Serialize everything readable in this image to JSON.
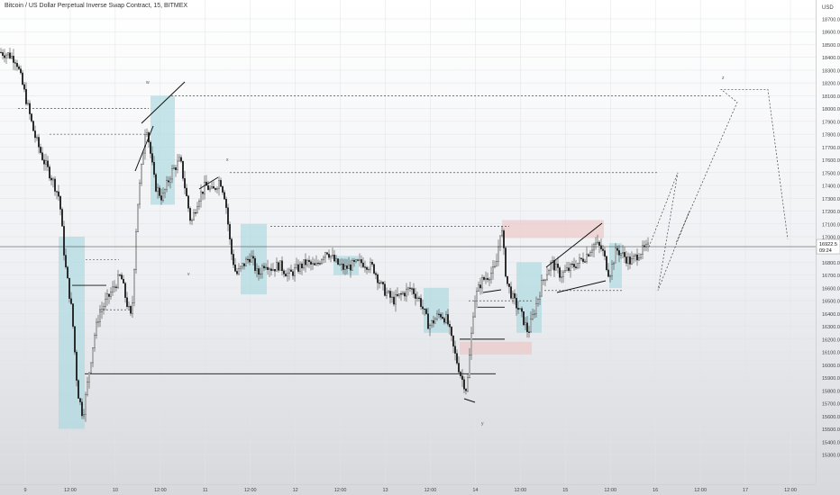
{
  "title": "Bitcoin / US Dollar Perpetual Inverse Swap Contract, 15, BITMEX",
  "currency": "USD",
  "colors": {
    "up": "#ffffff",
    "down": "#222222",
    "box": "#a9d8e0",
    "supply": "#ecc6c6",
    "grid": "#e1e3e6"
  },
  "chart_data": {
    "type": "candlestick",
    "ylim": [
      15250,
      18800
    ],
    "y_ticks": [
      "15300.0",
      "15400.0",
      "15500.0",
      "15600.0",
      "15700.0",
      "15800.0",
      "15900.0",
      "16000.0",
      "16100.0",
      "16200.0",
      "16300.0",
      "16400.0",
      "16500.0",
      "16600.0",
      "16700.0",
      "16800.0",
      "16900.0",
      "17000.0",
      "17100.0",
      "17200.0",
      "17300.0",
      "17400.0",
      "17500.0",
      "17600.0",
      "17700.0",
      "17800.0",
      "17900.0",
      "18000.0",
      "18100.0",
      "18200.0",
      "18300.0",
      "18400.0",
      "18500.0",
      "18600.0",
      "18700.0"
    ],
    "x_ticks": [
      "9",
      "12:00",
      "10",
      "12:00",
      "11",
      "12:00",
      "12",
      "12:00",
      "13",
      "12:00",
      "14",
      "12:00",
      "15",
      "12:00",
      "16",
      "12:00",
      "17",
      "12:00"
    ],
    "last_price": "16922.5",
    "countdown": "09:24",
    "price_line": 16922.5,
    "wave_labels": [
      "w",
      "x",
      "y",
      "z",
      "v"
    ],
    "path": [
      [
        0,
        18440
      ],
      [
        10,
        18420
      ],
      [
        18,
        18380
      ],
      [
        28,
        18100
      ],
      [
        38,
        17800
      ],
      [
        48,
        17600
      ],
      [
        58,
        17450
      ],
      [
        66,
        17300
      ],
      [
        72,
        16800
      ],
      [
        80,
        16400
      ],
      [
        86,
        15800
      ],
      [
        92,
        15600
      ],
      [
        98,
        15900
      ],
      [
        104,
        16200
      ],
      [
        110,
        16400
      ],
      [
        118,
        16500
      ],
      [
        126,
        16600
      ],
      [
        134,
        16700
      ],
      [
        140,
        16500
      ],
      [
        146,
        16350
      ],
      [
        152,
        17200
      ],
      [
        158,
        17600
      ],
      [
        162,
        17900
      ],
      [
        166,
        17700
      ],
      [
        172,
        17400
      ],
      [
        180,
        17300
      ],
      [
        190,
        17500
      ],
      [
        200,
        17600
      ],
      [
        206,
        17350
      ],
      [
        212,
        17100
      ],
      [
        220,
        17300
      ],
      [
        228,
        17400
      ],
      [
        236,
        17350
      ],
      [
        244,
        17450
      ],
      [
        250,
        17300
      ],
      [
        256,
        16900
      ],
      [
        262,
        16700
      ],
      [
        270,
        16780
      ],
      [
        278,
        16850
      ],
      [
        286,
        16700
      ],
      [
        294,
        16800
      ],
      [
        302,
        16750
      ],
      [
        310,
        16780
      ],
      [
        320,
        16700
      ],
      [
        330,
        16750
      ],
      [
        340,
        16800
      ],
      [
        350,
        16760
      ],
      [
        362,
        16900
      ],
      [
        372,
        16800
      ],
      [
        382,
        16750
      ],
      [
        392,
        16780
      ],
      [
        402,
        16800
      ],
      [
        414,
        16760
      ],
      [
        424,
        16600
      ],
      [
        436,
        16500
      ],
      [
        446,
        16550
      ],
      [
        456,
        16600
      ],
      [
        466,
        16500
      ],
      [
        476,
        16300
      ],
      [
        488,
        16400
      ],
      [
        496,
        16350
      ],
      [
        504,
        16100
      ],
      [
        512,
        15900
      ],
      [
        518,
        15800
      ],
      [
        526,
        16500
      ],
      [
        534,
        16650
      ],
      [
        542,
        16700
      ],
      [
        550,
        16750
      ],
      [
        556,
        17100
      ],
      [
        562,
        16650
      ],
      [
        570,
        16500
      ],
      [
        578,
        16400
      ],
      [
        586,
        16250
      ],
      [
        594,
        16450
      ],
      [
        602,
        16650
      ],
      [
        612,
        16800
      ],
      [
        622,
        16700
      ],
      [
        632,
        16750
      ],
      [
        642,
        16800
      ],
      [
        650,
        16850
      ],
      [
        660,
        16950
      ],
      [
        668,
        16900
      ],
      [
        676,
        16700
      ],
      [
        684,
        16900
      ],
      [
        692,
        16850
      ],
      [
        700,
        16800
      ],
      [
        710,
        16880
      ],
      [
        720,
        16920
      ]
    ],
    "boxes": [
      {
        "x1": 65,
        "x2": 94,
        "y1": 15500,
        "y2": 17000,
        "kind": "demand"
      },
      {
        "x1": 167,
        "x2": 194,
        "y1": 17250,
        "y2": 18100,
        "kind": "demand"
      },
      {
        "x1": 267,
        "x2": 296,
        "y1": 16550,
        "y2": 17100,
        "kind": "demand"
      },
      {
        "x1": 370,
        "x2": 398,
        "y1": 16700,
        "y2": 16850,
        "kind": "demand"
      },
      {
        "x1": 470,
        "x2": 498,
        "y1": 16250,
        "y2": 16600,
        "kind": "demand"
      },
      {
        "x1": 573,
        "x2": 601,
        "y1": 16250,
        "y2": 16800,
        "kind": "demand"
      },
      {
        "x1": 676,
        "x2": 690,
        "y1": 16600,
        "y2": 16950,
        "kind": "demand"
      },
      {
        "x1": 557,
        "x2": 670,
        "y1": 16990,
        "y2": 17130,
        "kind": "supply"
      },
      {
        "x1": 510,
        "x2": 590,
        "y1": 16080,
        "y2": 16180,
        "kind": "supply"
      }
    ],
    "dashed_levels": [
      {
        "x1": 20,
        "x2": 165,
        "y": 18000
      },
      {
        "x1": 55,
        "x2": 160,
        "y": 17800
      },
      {
        "x1": 190,
        "x2": 800,
        "y": 18100
      },
      {
        "x1": 255,
        "x2": 730,
        "y": 17500
      },
      {
        "x1": 300,
        "x2": 565,
        "y": 17080
      },
      {
        "x1": 95,
        "x2": 132,
        "y": 16820
      },
      {
        "x1": 110,
        "x2": 150,
        "y": 16430
      },
      {
        "x1": 520,
        "x2": 590,
        "y": 16500
      },
      {
        "x1": 600,
        "x2": 690,
        "y": 16580
      }
    ],
    "solid_levels": [
      {
        "x1": 80,
        "x2": 118,
        "y": 16620
      },
      {
        "x1": 94,
        "x2": 550,
        "y": 15930
      },
      {
        "x1": 510,
        "x2": 560,
        "y": 16200
      },
      {
        "x1": 530,
        "x2": 560,
        "y": 16450
      }
    ],
    "projection": [
      [
        720,
        16920
      ],
      [
        752,
        17500
      ],
      [
        730,
        16580
      ],
      [
        765,
        17200
      ],
      [
        750,
        16950
      ],
      [
        818,
        18050
      ],
      [
        800,
        18150
      ],
      [
        852,
        18150
      ],
      [
        874,
        16980
      ]
    ]
  }
}
